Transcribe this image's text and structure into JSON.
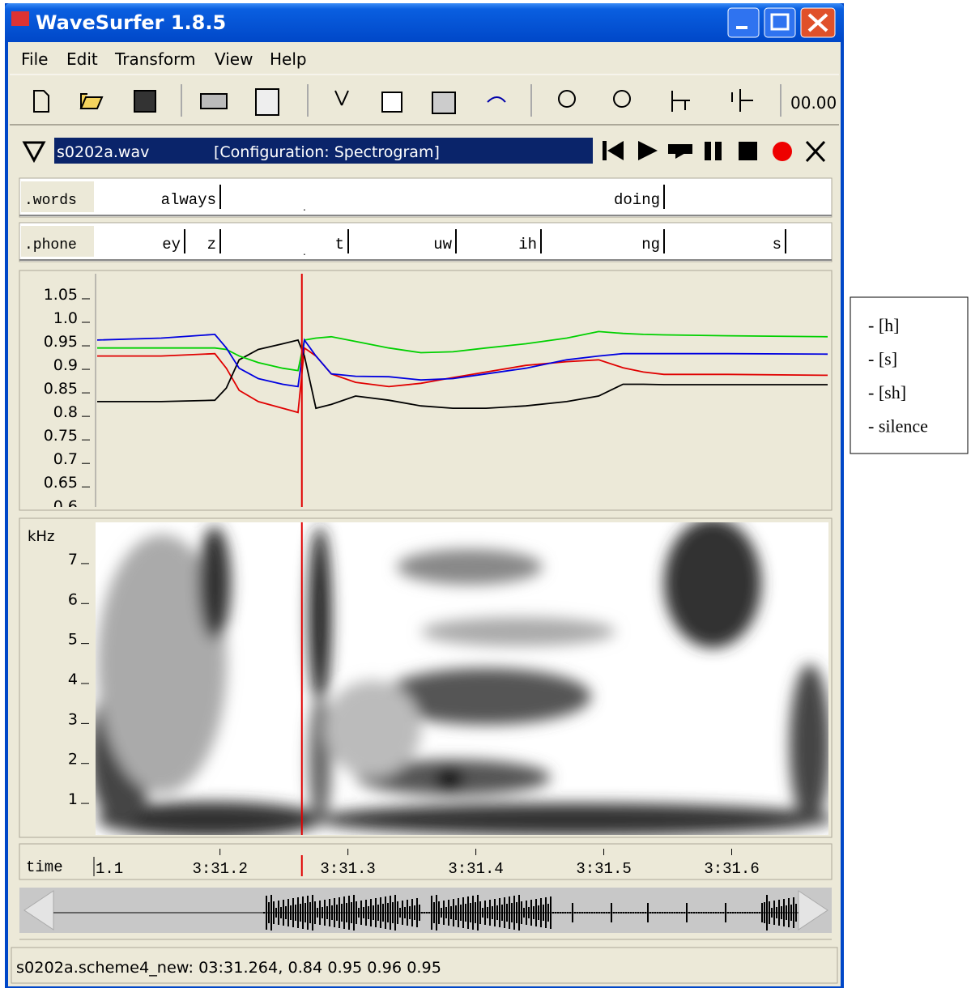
{
  "window": {
    "title": "WaveSurfer 1.8.5"
  },
  "menu": [
    "File",
    "Edit",
    "Transform",
    "View",
    "Help"
  ],
  "toolbar": {
    "time": "00.00"
  },
  "sound": {
    "file": "s0202a.wav",
    "configuration": "[Configuration: Spectrogram]"
  },
  "tiers": [
    {
      "name": ".words",
      "labels": [
        "always",
        "doing"
      ]
    },
    {
      "name": ".phone",
      "labels": [
        "ey",
        "z",
        "t",
        "uw",
        "ih",
        "ng",
        "s"
      ]
    }
  ],
  "chart_data": {
    "type": "line",
    "xlim": [
      211.104,
      211.675
    ],
    "xticks": [
      {
        "value": 211.1,
        "label": "1.1"
      },
      {
        "value": 211.2,
        "label": "3:31.2"
      },
      {
        "value": 211.3,
        "label": "3:31.3"
      },
      {
        "value": 211.4,
        "label": "3:31.4"
      },
      {
        "value": 211.5,
        "label": "3:31.5"
      },
      {
        "value": 211.6,
        "label": "3:31.6"
      }
    ],
    "xlabel": "time",
    "ylim": [
      0.597,
      1.093
    ],
    "yticks": [
      1.05,
      {
        "value": 1,
        "label": "1.0"
      },
      0.95,
      0.9,
      0.85,
      0.8,
      0.75,
      0.7,
      0.65,
      0.6
    ],
    "cursor": 211.264,
    "x": [
      211.104,
      211.154,
      211.196,
      211.205,
      211.215,
      211.23,
      211.249,
      211.261,
      211.266,
      211.275,
      211.287,
      211.306,
      211.332,
      211.357,
      211.382,
      211.408,
      211.439,
      211.471,
      211.496,
      211.515,
      211.531,
      211.547,
      211.597,
      211.675
    ],
    "series": [
      {
        "name": "- [h]",
        "color": "#e00000",
        "values": [
          0.918,
          0.918,
          0.923,
          0.892,
          0.845,
          0.821,
          0.807,
          0.798,
          0.935,
          0.918,
          0.88,
          0.862,
          0.853,
          0.86,
          0.872,
          0.884,
          0.898,
          0.906,
          0.91,
          0.893,
          0.884,
          0.879,
          0.879,
          0.877
        ]
      },
      {
        "name": "- [s]",
        "color": "#000000",
        "values": [
          0.821,
          0.821,
          0.824,
          0.85,
          0.91,
          0.932,
          0.944,
          0.952,
          0.918,
          0.807,
          0.815,
          0.833,
          0.824,
          0.812,
          0.807,
          0.807,
          0.812,
          0.821,
          0.833,
          0.858,
          0.858,
          0.857,
          0.857,
          0.857
        ]
      },
      {
        "name": "- [sh]",
        "color": "#00d000",
        "values": [
          0.935,
          0.935,
          0.935,
          0.932,
          0.918,
          0.904,
          0.892,
          0.887,
          0.952,
          0.956,
          0.959,
          0.949,
          0.935,
          0.925,
          0.927,
          0.935,
          0.944,
          0.956,
          0.97,
          0.966,
          0.964,
          0.963,
          0.961,
          0.959
        ]
      },
      {
        "name": "- silence",
        "color": "#0000e0",
        "values": [
          0.952,
          0.956,
          0.964,
          0.935,
          0.892,
          0.87,
          0.858,
          0.853,
          0.952,
          0.918,
          0.88,
          0.875,
          0.874,
          0.867,
          0.87,
          0.88,
          0.892,
          0.91,
          0.918,
          0.923,
          0.923,
          0.923,
          0.923,
          0.922
        ]
      }
    ]
  },
  "spectrogram": {
    "unit": "kHz",
    "ylim": [
      0.09,
      7.91
    ],
    "yticks": [
      1,
      2,
      3,
      4,
      5,
      6,
      7
    ]
  },
  "status": "s0202a.scheme4_new: 03:31.264, 0.84 0.95 0.96 0.95"
}
